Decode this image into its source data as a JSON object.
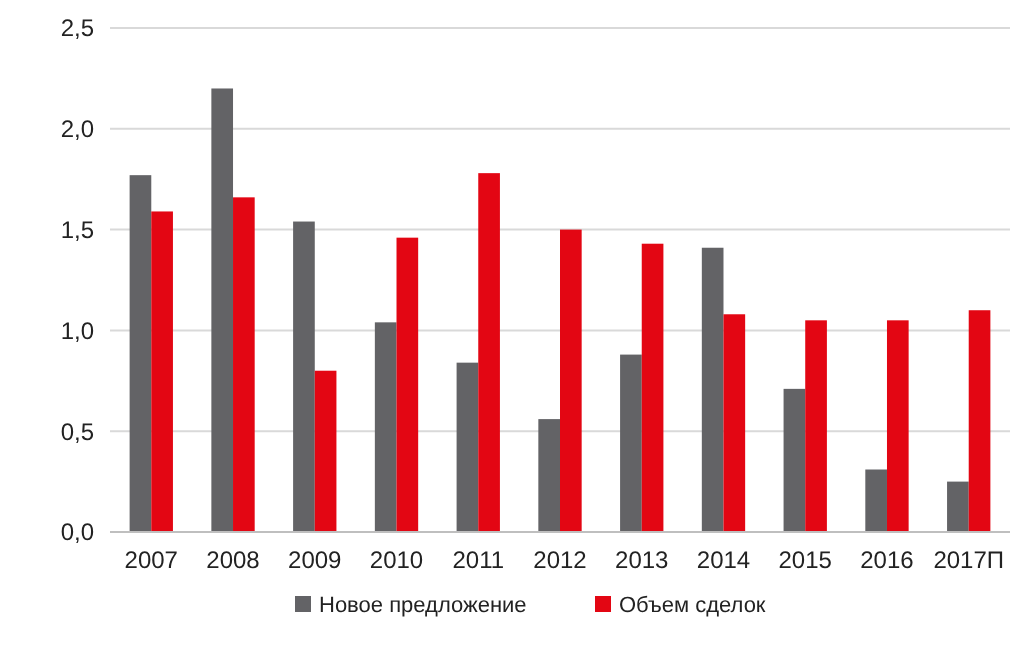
{
  "chart_data": {
    "type": "bar",
    "categories": [
      "2007",
      "2008",
      "2009",
      "2010",
      "2011",
      "2012",
      "2013",
      "2014",
      "2015",
      "2016",
      "2017П"
    ],
    "series": [
      {
        "name": "Новое предложение",
        "color": "#636366",
        "values": [
          1.77,
          2.2,
          1.54,
          1.04,
          0.84,
          0.56,
          0.88,
          1.41,
          0.71,
          0.31,
          0.25
        ]
      },
      {
        "name": "Объем сделок",
        "color": "#e30613",
        "values": [
          1.59,
          1.66,
          0.8,
          1.46,
          1.78,
          1.5,
          1.43,
          1.08,
          1.05,
          1.05,
          1.1
        ]
      }
    ],
    "ylim": [
      0,
      2.5
    ],
    "yticks": [
      {
        "value": 0,
        "label": "0,0"
      },
      {
        "value": 0.5,
        "label": "0,5"
      },
      {
        "value": 1,
        "label": "1,0"
      },
      {
        "value": 1.5,
        "label": "1,5"
      },
      {
        "value": 2,
        "label": "2,0"
      },
      {
        "value": 2.5,
        "label": "2,5"
      }
    ],
    "grid": "y",
    "legend": "bottom"
  }
}
